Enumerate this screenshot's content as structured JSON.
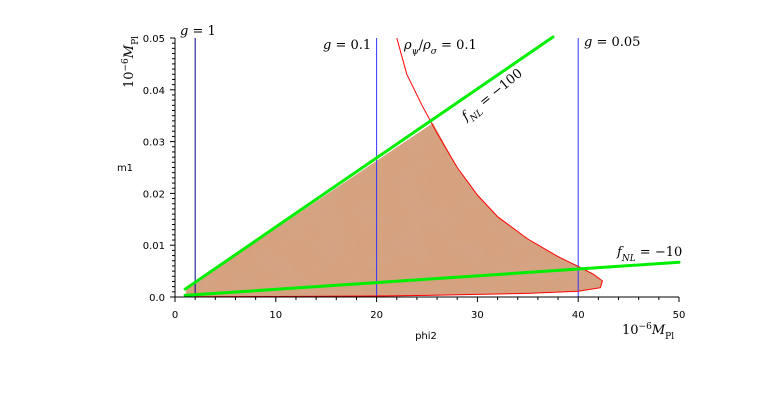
{
  "chart_data": {
    "type": "line",
    "xlabel": "phi2",
    "ylabel": "m1",
    "x_unit": "10^{-6} M_{Pl}",
    "y_unit": "10^{-6} M_{Pl}",
    "xlim": [
      0,
      50
    ],
    "ylim": [
      0,
      0.05
    ],
    "x_ticks": [
      "0",
      "10",
      "20",
      "30",
      "40",
      "50"
    ],
    "y_ticks": [
      "0.0",
      "0.01",
      "0.02",
      "0.03",
      "0.04",
      "0.05"
    ],
    "series": [
      {
        "name": "g = 1",
        "color": "#00008b",
        "kind": "vertical",
        "x": 2
      },
      {
        "name": "g = 0.1",
        "color": "#3333ff",
        "kind": "vertical",
        "x": 20
      },
      {
        "name": "g = 0.05",
        "color": "#3333ff",
        "kind": "vertical",
        "x": 40
      },
      {
        "name": "ρψ/ρσ = 0.1",
        "color": "#ff0000",
        "kind": "curve",
        "points": [
          [
            22,
            0.05
          ],
          [
            23,
            0.043
          ],
          [
            24.5,
            0.037
          ],
          [
            26,
            0.0316
          ],
          [
            28,
            0.025
          ],
          [
            30,
            0.0197
          ],
          [
            32,
            0.0155
          ],
          [
            35,
            0.0112
          ],
          [
            38,
            0.0078
          ],
          [
            40,
            0.0059
          ],
          [
            41.5,
            0.0044
          ],
          [
            42.4,
            0.0031
          ],
          [
            42.2,
            0.0018
          ],
          [
            40,
            0.0011
          ],
          [
            35,
            0.0007
          ],
          [
            30,
            0.0005
          ],
          [
            25,
            0.0003
          ],
          [
            20,
            0.0002
          ],
          [
            10,
            0.0001
          ],
          [
            2,
            5e-05
          ]
        ]
      },
      {
        "name": "fNL = −100",
        "color": "#00ee00",
        "kind": "line",
        "points": [
          [
            1,
            0.0015
          ],
          [
            37.5,
            0.0502
          ]
        ]
      },
      {
        "name": "fNL = −10",
        "color": "#00ee00",
        "kind": "line",
        "points": [
          [
            1,
            0.0003
          ],
          [
            50,
            0.0067
          ]
        ]
      }
    ],
    "region": {
      "color": "#d8a07a",
      "boundary": [
        [
          1,
          0.0003
        ],
        [
          1.2,
          0.0017
        ],
        [
          25.6,
          0.0336
        ],
        [
          28,
          0.025
        ],
        [
          30,
          0.0197
        ],
        [
          32,
          0.0155
        ],
        [
          35,
          0.0112
        ],
        [
          38,
          0.0078
        ],
        [
          40,
          0.0059
        ],
        [
          41.5,
          0.0044
        ],
        [
          42.4,
          0.0031
        ],
        [
          42.2,
          0.0018
        ],
        [
          40,
          0.0011
        ],
        [
          35,
          0.0007
        ],
        [
          30,
          0.0005
        ],
        [
          20,
          0.0002
        ],
        [
          10,
          0.0001
        ],
        [
          2,
          5e-05
        ]
      ]
    },
    "annotations": [
      {
        "id": "g1",
        "base": "g",
        "rest": " = 1"
      },
      {
        "id": "g01",
        "base": "g",
        "rest": " = 0.1"
      },
      {
        "id": "g005",
        "base": "g",
        "rest": " = 0.05"
      },
      {
        "id": "rho",
        "text": "ρψ/ρσ = 0.1"
      },
      {
        "id": "fnl100",
        "text": "fNL = −100"
      },
      {
        "id": "fnl10",
        "text": "fNL = −10"
      }
    ]
  }
}
